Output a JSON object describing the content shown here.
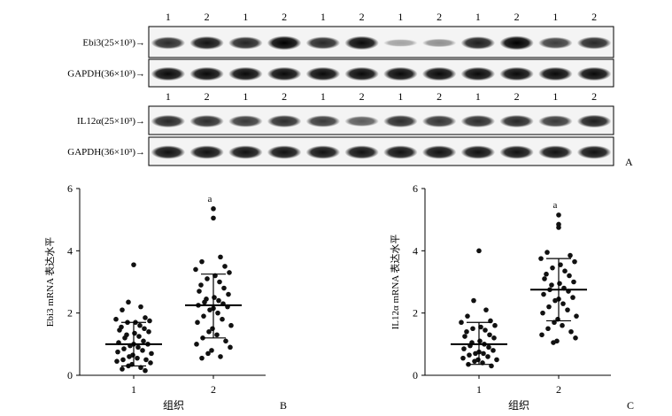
{
  "panel_a": {
    "lane_labels": [
      "1",
      "2",
      "1",
      "2",
      "1",
      "2",
      "1",
      "2",
      "1",
      "2",
      "1",
      "2"
    ],
    "blots": [
      {
        "label": "Ebi3(25×10³)→",
        "intensity": [
          0.78,
          0.9,
          0.82,
          1.0,
          0.8,
          0.95,
          0.18,
          0.28,
          0.85,
          1.0,
          0.7,
          0.8
        ]
      },
      {
        "label": "GAPDH(36×10³)→",
        "intensity": [
          0.95,
          0.95,
          0.95,
          0.95,
          0.95,
          0.95,
          0.95,
          0.95,
          0.95,
          0.95,
          0.95,
          0.95
        ]
      },
      {
        "label": "IL12α(25×10³)→",
        "intensity": [
          0.8,
          0.78,
          0.72,
          0.78,
          0.72,
          0.55,
          0.78,
          0.75,
          0.78,
          0.8,
          0.72,
          0.85
        ]
      },
      {
        "label": "GAPDH(36×10³)→",
        "intensity": [
          0.92,
          0.92,
          0.92,
          0.92,
          0.92,
          0.92,
          0.92,
          0.92,
          0.92,
          0.92,
          0.92,
          0.92
        ]
      }
    ],
    "panel_letter": "A"
  },
  "chart_data": [
    {
      "type": "scatter",
      "panel_letter": "B",
      "ylabel": "Ebi3 mRNA 表达水平",
      "xlabel": "组织",
      "categories": [
        "1",
        "2"
      ],
      "ylim": [
        0,
        6
      ],
      "yticks": [
        0,
        2,
        4,
        6
      ],
      "significance_label": "a",
      "groups": [
        {
          "category": "1",
          "mean": 1.0,
          "sd_low": 0.3,
          "sd_high": 1.7,
          "values": [
            3.55,
            2.35,
            2.2,
            2.1,
            1.85,
            1.8,
            1.75,
            1.7,
            1.7,
            1.6,
            1.55,
            1.5,
            1.45,
            1.4,
            1.35,
            1.3,
            1.25,
            1.2,
            1.1,
            1.05,
            1.0,
            1.0,
            0.95,
            0.9,
            0.85,
            0.8,
            0.75,
            0.7,
            0.65,
            0.6,
            0.55,
            0.5,
            0.5,
            0.45,
            0.4,
            0.35,
            0.3,
            0.25,
            0.2,
            0.15
          ]
        },
        {
          "category": "2",
          "mean": 2.25,
          "sd_low": 1.2,
          "sd_high": 3.25,
          "values": [
            5.35,
            5.05,
            3.8,
            3.65,
            3.5,
            3.4,
            3.3,
            3.2,
            3.1,
            3.0,
            2.9,
            2.8,
            2.7,
            2.6,
            2.5,
            2.45,
            2.4,
            2.35,
            2.3,
            2.25,
            2.2,
            2.15,
            2.1,
            2.0,
            1.9,
            1.8,
            1.7,
            1.6,
            1.5,
            1.4,
            1.3,
            1.2,
            1.1,
            1.0,
            0.9,
            0.8,
            0.7,
            0.6,
            0.55
          ]
        }
      ]
    },
    {
      "type": "scatter",
      "panel_letter": "C",
      "ylabel": "IL12α mRNA 表达水平",
      "xlabel": "组织",
      "categories": [
        "1",
        "2"
      ],
      "ylim": [
        0,
        6
      ],
      "yticks": [
        0,
        2,
        4,
        6
      ],
      "significance_label": "a",
      "groups": [
        {
          "category": "1",
          "mean": 1.0,
          "sd_low": 0.35,
          "sd_high": 1.7,
          "values": [
            4.0,
            2.4,
            2.1,
            1.9,
            1.75,
            1.7,
            1.6,
            1.55,
            1.5,
            1.45,
            1.4,
            1.3,
            1.25,
            1.2,
            1.1,
            1.05,
            1.0,
            0.95,
            0.9,
            0.85,
            0.8,
            0.75,
            0.7,
            0.7,
            0.65,
            0.6,
            0.55,
            0.5,
            0.5,
            0.45,
            0.4,
            0.35,
            0.3
          ]
        },
        {
          "category": "2",
          "mean": 2.75,
          "sd_low": 1.75,
          "sd_high": 3.75,
          "values": [
            5.15,
            4.85,
            4.75,
            3.95,
            3.85,
            3.75,
            3.65,
            3.55,
            3.45,
            3.35,
            3.25,
            3.2,
            3.1,
            3.0,
            2.95,
            2.9,
            2.8,
            2.75,
            2.7,
            2.6,
            2.5,
            2.45,
            2.4,
            2.3,
            2.2,
            2.1,
            2.0,
            1.9,
            1.8,
            1.7,
            1.6,
            1.5,
            1.4,
            1.3,
            1.2,
            1.1,
            1.05
          ]
        }
      ]
    }
  ]
}
